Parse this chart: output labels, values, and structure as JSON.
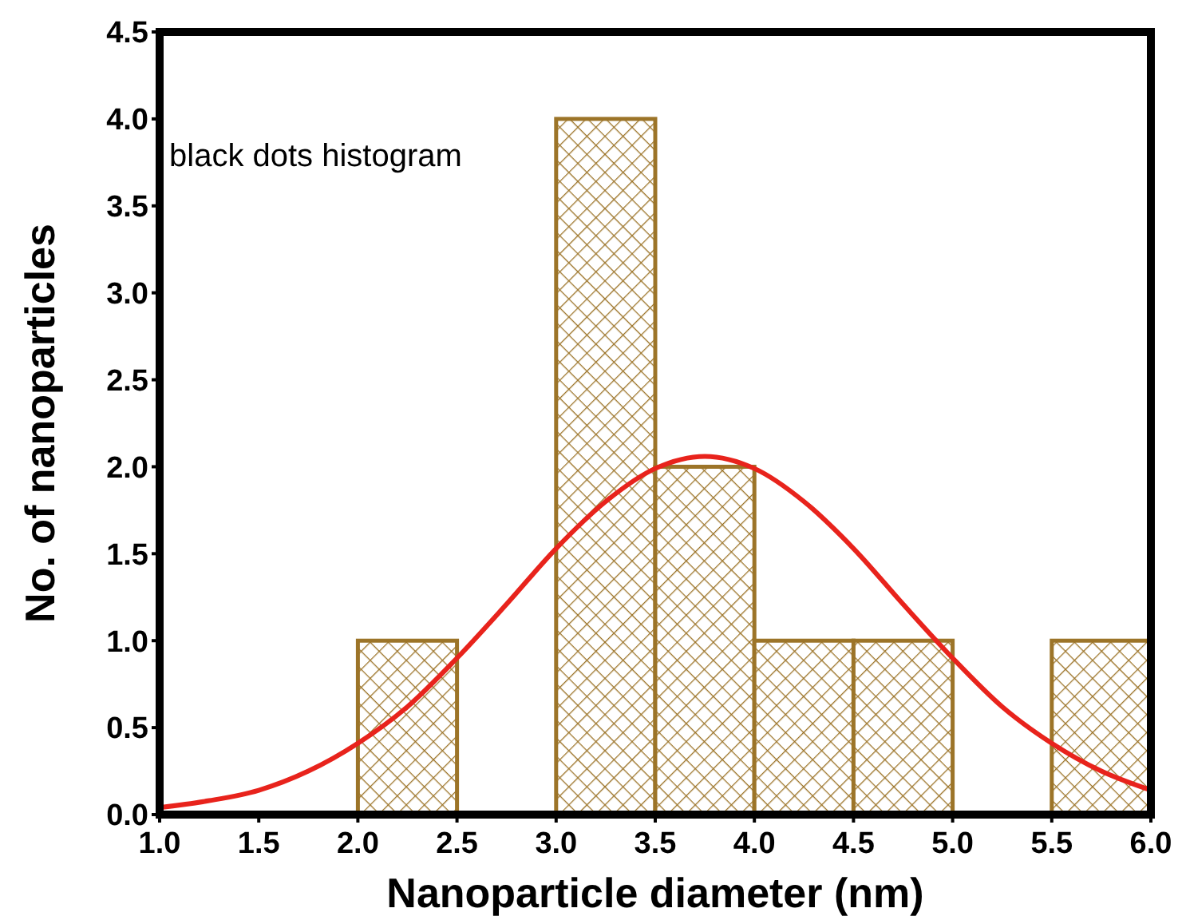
{
  "chart_data": {
    "type": "histogram",
    "xlabel": "Nanoparticle diameter (nm)",
    "ylabel": "No. of nanoparticles",
    "bins": [
      1.0,
      1.5,
      2.0,
      2.5,
      3.0,
      3.5,
      4.0,
      4.5,
      5.0,
      5.5,
      6.0
    ],
    "values": [
      0,
      0,
      1,
      0,
      4,
      2,
      1,
      1,
      0,
      1
    ],
    "color": "#9c7428",
    "series": [
      {
        "type": "line",
        "color": "#e8231c",
        "x": [
          1.0,
          1.25,
          1.5,
          1.75,
          2.0,
          2.25,
          2.5,
          2.75,
          3.0,
          3.25,
          3.5,
          3.75,
          4.0,
          4.25,
          4.5,
          4.75,
          5.0,
          5.25,
          5.5,
          5.75,
          6.0
        ],
        "values": [
          0.04,
          0.08,
          0.14,
          0.25,
          0.41,
          0.62,
          0.9,
          1.21,
          1.53,
          1.8,
          1.99,
          2.06,
          1.99,
          1.8,
          1.53,
          1.21,
          0.9,
          0.62,
          0.41,
          0.25,
          0.14
        ]
      }
    ],
    "xlim": [
      1.0,
      6.0
    ],
    "xticks": [
      {
        "value": 1,
        "label": "1.0"
      },
      {
        "value": 1.5,
        "label": "1.5"
      },
      {
        "value": 2,
        "label": "2.0"
      },
      {
        "value": 2.5,
        "label": "2.5"
      },
      {
        "value": 3,
        "label": "3.0"
      },
      {
        "value": 3.5,
        "label": "3.5"
      },
      {
        "value": 4,
        "label": "4.0"
      },
      {
        "value": 4.5,
        "label": "4.5"
      },
      {
        "value": 5,
        "label": "5.0"
      },
      {
        "value": 5.5,
        "label": "5.5"
      },
      {
        "value": 6,
        "label": "6.0"
      }
    ],
    "ylim": [
      0,
      4.5
    ],
    "yticks": [
      {
        "value": 0,
        "label": "0.0"
      },
      {
        "value": 0.5,
        "label": "0.5"
      },
      {
        "value": 1,
        "label": "1.0"
      },
      {
        "value": 1.5,
        "label": "1.5"
      },
      {
        "value": 2,
        "label": "2.0"
      },
      {
        "value": 2.5,
        "label": "2.5"
      },
      {
        "value": 3,
        "label": "3.0"
      },
      {
        "value": 3.5,
        "label": "3.5"
      },
      {
        "value": 4,
        "label": "4.0"
      },
      {
        "value": 4.5,
        "label": "4.5"
      }
    ],
    "grid": false,
    "annotations": [
      "black dots histogram"
    ]
  }
}
